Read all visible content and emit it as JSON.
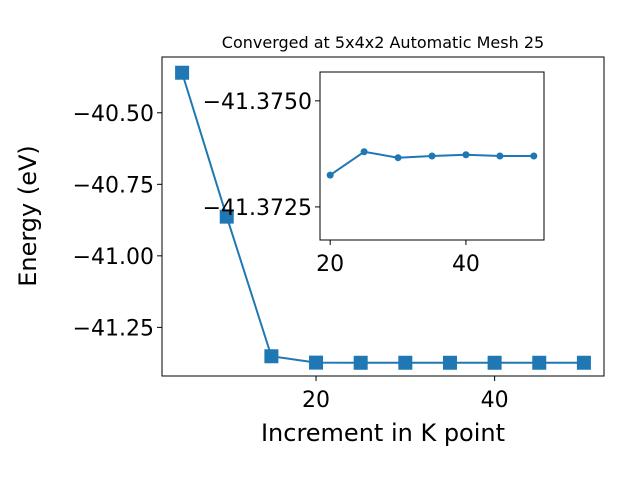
{
  "chart_data": [
    {
      "type": "line",
      "title": "Converged at 5x4x2 Automatic Mesh 25",
      "x_label": "Increment in K point",
      "y_label": "Energy (eV)",
      "x": [
        5,
        10,
        15,
        20,
        25,
        30,
        35,
        40,
        45,
        50
      ],
      "series": [
        {
          "color": "#1f77b4",
          "marker": "square",
          "values": [
            -40.36,
            -40.863,
            -41.351,
            -41.37325,
            -41.3738,
            -41.37366,
            -41.3737,
            -41.37373,
            -41.3737,
            -41.3737
          ]
        }
      ],
      "xlim": [
        2.75,
        52.25
      ],
      "xticks": [
        20,
        40
      ],
      "ylim": [
        -41.42,
        -40.305
      ],
      "yticks": [
        {
          "value": -40.5,
          "label": "−40.50"
        },
        {
          "value": -40.75,
          "label": "−40.75"
        },
        {
          "value": -41.0,
          "label": "−41.00"
        },
        {
          "value": -41.25,
          "label": "−41.25"
        }
      ]
    },
    {
      "type": "line",
      "x": [
        20,
        25,
        30,
        35,
        40,
        45,
        50
      ],
      "series": [
        {
          "color": "#1f77b4",
          "marker": "circle",
          "values": [
            -41.37325,
            -41.3738,
            -41.37366,
            -41.3737,
            -41.37373,
            -41.3737,
            -41.3737
          ]
        }
      ],
      "xlim": [
        18.5,
        51.5
      ],
      "xticks": [
        20,
        40
      ],
      "ylim": [
        -41.37172,
        -41.37568
      ],
      "yticks": [
        {
          "value": -41.375,
          "label": "−41.3750"
        },
        {
          "value": -41.3725,
          "label": "−41.3725"
        }
      ]
    }
  ]
}
